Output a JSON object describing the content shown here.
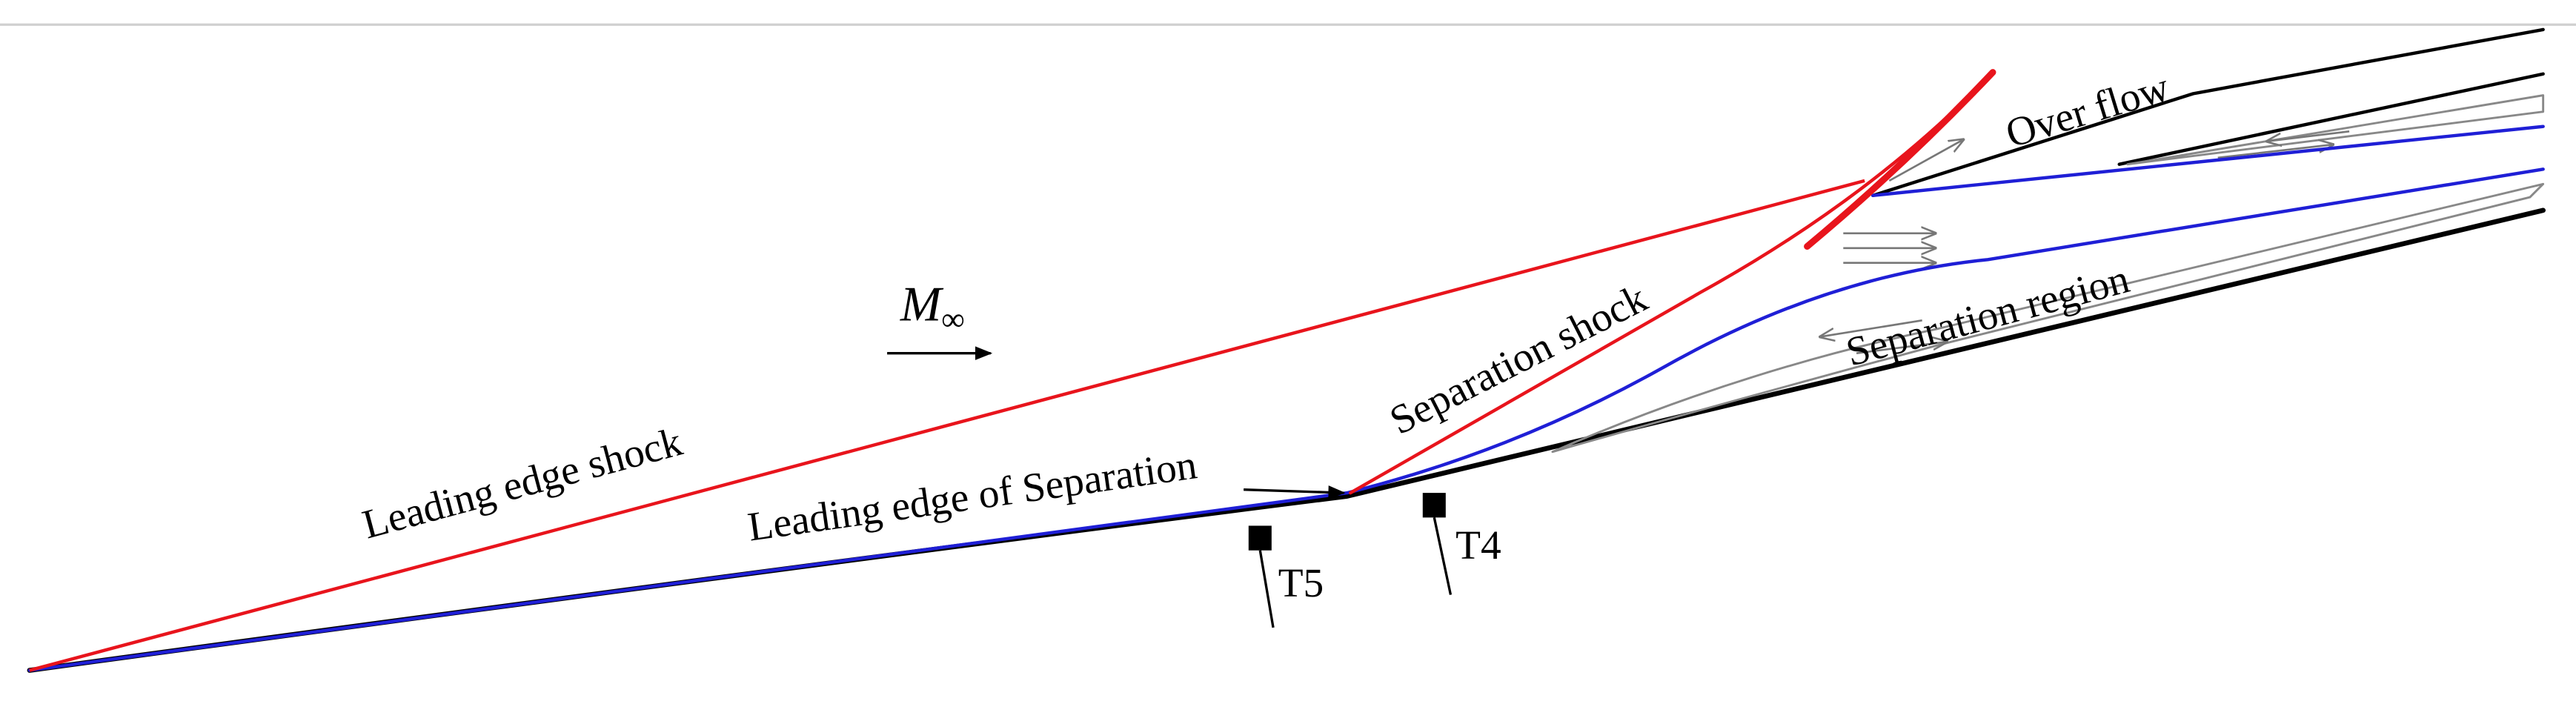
{
  "labels": {
    "leading_edge_shock": "Leading edge shock",
    "leading_edge_of_separation": "Leading edge of Separation",
    "separation_shock": "Separation shock",
    "separation_region": "Separation region",
    "over_flow": "Over flow",
    "mach": {
      "symbol": "M",
      "subscript": "∞"
    },
    "sensor_t5": "T5",
    "sensor_t4": "T4"
  }
}
